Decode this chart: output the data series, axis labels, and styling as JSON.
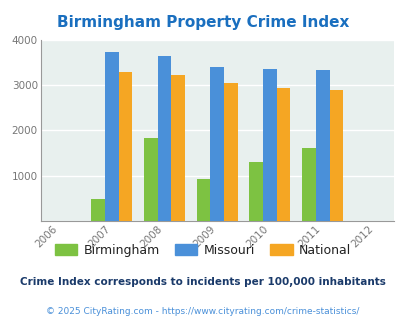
{
  "title": "Birmingham Property Crime Index",
  "years": [
    2006,
    2007,
    2008,
    2009,
    2010,
    2011,
    2012
  ],
  "data_years": [
    2007,
    2008,
    2009,
    2010,
    2011
  ],
  "birmingham": [
    480,
    1830,
    920,
    1310,
    1620
  ],
  "missouri": [
    3720,
    3640,
    3400,
    3360,
    3330
  ],
  "national": [
    3280,
    3210,
    3040,
    2940,
    2900
  ],
  "bar_colors": {
    "birmingham": "#7DC242",
    "missouri": "#4A90D9",
    "national": "#F5A623"
  },
  "ylim": [
    0,
    4000
  ],
  "yticks": [
    0,
    1000,
    2000,
    3000,
    4000
  ],
  "bg_color": "#E8F0EE",
  "footnote1": "Crime Index corresponds to incidents per 100,000 inhabitants",
  "footnote2": "© 2025 CityRating.com - https://www.cityrating.com/crime-statistics/",
  "title_color": "#1A6FBF",
  "footnote1_color": "#1A3A6A",
  "footnote2_color": "#4A90D9",
  "bar_width": 0.26
}
